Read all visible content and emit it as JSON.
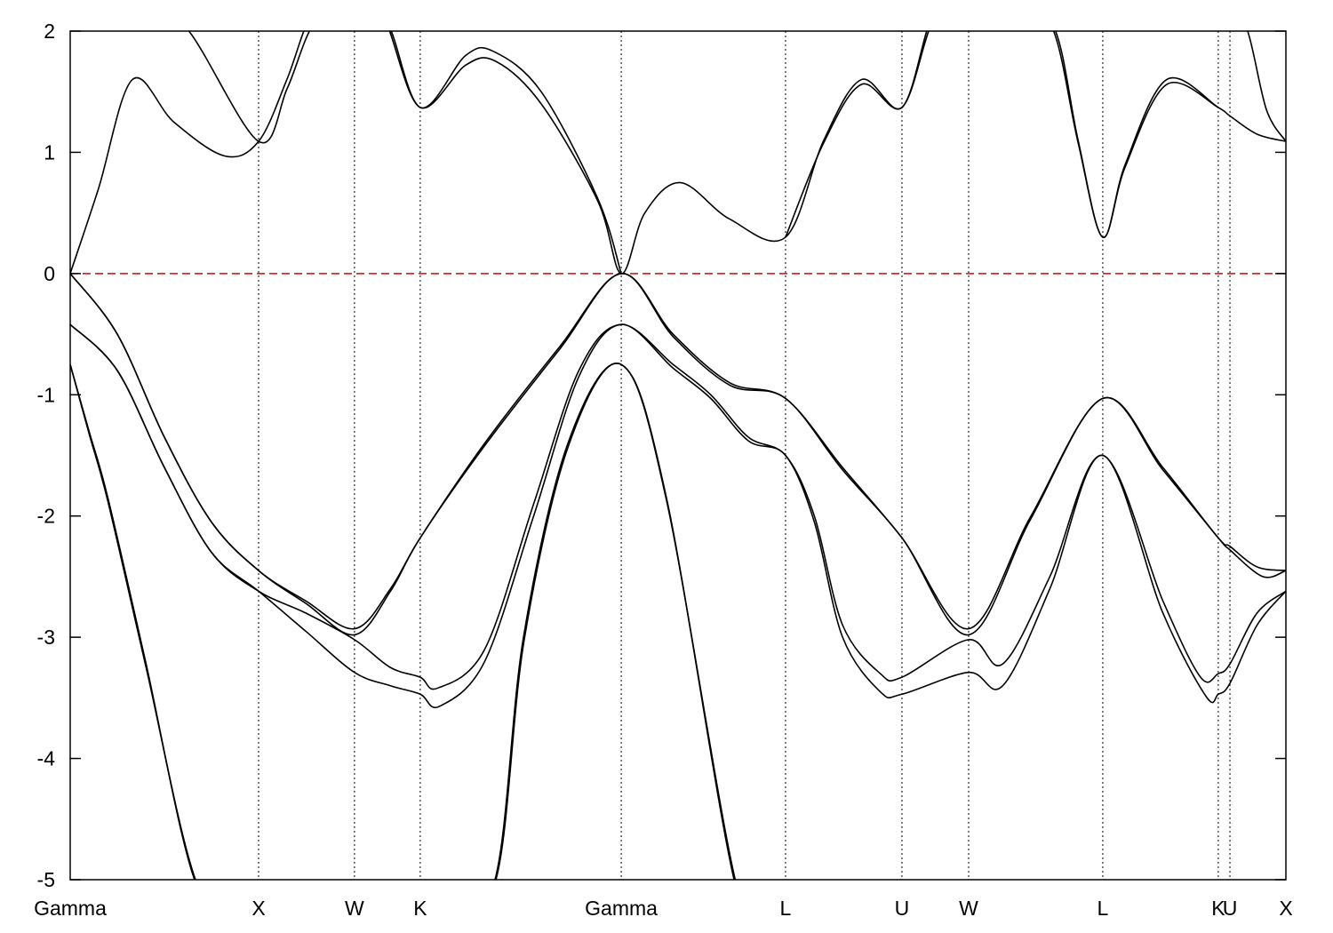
{
  "chart_data": {
    "type": "line",
    "title": "",
    "xlabel": "",
    "ylabel": "",
    "ylim": [
      -5,
      2
    ],
    "yticks": [
      "-5",
      "-4",
      "-3",
      "-2",
      "-1",
      "0",
      "1",
      "2"
    ],
    "xlim": [
      0,
      6.453
    ],
    "xticks": [
      {
        "label": "Gamma",
        "x": 0
      },
      {
        "label": "X",
        "x": 1.0
      },
      {
        "label": "W",
        "x": 1.509
      },
      {
        "label": "K",
        "x": 1.858
      },
      {
        "label": "Gamma",
        "x": 2.925
      },
      {
        "label": "L",
        "x": 3.797
      },
      {
        "label": "U",
        "x": 4.415
      },
      {
        "label": "W",
        "x": 4.769
      },
      {
        "label": "L",
        "x": 5.481
      },
      {
        "label": "K",
        "x": 6.094
      },
      {
        "label": "U",
        "x": 6.156
      },
      {
        "label": "X",
        "x": 6.453
      }
    ],
    "grid": "vertical dotted lines at high-symmetry points",
    "reference_line": {
      "y": 0,
      "color": "#e00000",
      "style": "dashed"
    },
    "line_color": "#000000",
    "series": [
      {
        "points": [
          [
            0,
            0
          ],
          [
            0.25,
            -0.5
          ],
          [
            0.5,
            -1.35
          ],
          [
            0.75,
            -2.05
          ],
          [
            1.0,
            -2.45
          ],
          [
            1.25,
            -2.7
          ],
          [
            1.509,
            -2.93
          ],
          [
            1.7,
            -2.6
          ],
          [
            1.858,
            -2.18
          ],
          [
            2.2,
            -1.4
          ],
          [
            2.6,
            -0.6
          ],
          [
            2.925,
            0
          ],
          [
            3.2,
            -0.5
          ],
          [
            3.5,
            -0.9
          ],
          [
            3.797,
            -1.03
          ],
          [
            4.1,
            -1.6
          ],
          [
            4.415,
            -2.18
          ],
          [
            4.769,
            -2.93
          ],
          [
            5.1,
            -2.0
          ],
          [
            5.481,
            -1.03
          ],
          [
            5.8,
            -1.6
          ],
          [
            6.094,
            -2.18
          ],
          [
            6.156,
            -2.25
          ],
          [
            6.3,
            -2.42
          ],
          [
            6.453,
            -2.45
          ]
        ]
      },
      {
        "points": [
          [
            0,
            0
          ],
          [
            0.25,
            -0.5
          ],
          [
            0.5,
            -1.35
          ],
          [
            0.75,
            -2.05
          ],
          [
            1.0,
            -2.45
          ],
          [
            1.25,
            -2.72
          ],
          [
            1.509,
            -2.98
          ],
          [
            1.7,
            -2.62
          ],
          [
            1.858,
            -2.18
          ],
          [
            2.2,
            -1.42
          ],
          [
            2.6,
            -0.62
          ],
          [
            2.925,
            0
          ],
          [
            3.2,
            -0.52
          ],
          [
            3.5,
            -0.92
          ],
          [
            3.797,
            -1.03
          ],
          [
            4.1,
            -1.62
          ],
          [
            4.415,
            -2.18
          ],
          [
            4.769,
            -2.98
          ],
          [
            5.1,
            -2.02
          ],
          [
            5.481,
            -1.03
          ],
          [
            5.8,
            -1.62
          ],
          [
            6.094,
            -2.18
          ],
          [
            6.156,
            -2.28
          ],
          [
            6.33,
            -2.5
          ],
          [
            6.453,
            -2.45
          ]
        ]
      },
      {
        "points": [
          [
            0,
            -0.42
          ],
          [
            0.25,
            -0.8
          ],
          [
            0.5,
            -1.6
          ],
          [
            0.75,
            -2.3
          ],
          [
            1.0,
            -2.62
          ],
          [
            1.25,
            -2.8
          ],
          [
            1.509,
            -3.02
          ],
          [
            1.7,
            -3.25
          ],
          [
            1.858,
            -3.33
          ],
          [
            1.95,
            -3.42
          ],
          [
            2.2,
            -3.1
          ],
          [
            2.46,
            -1.9
          ],
          [
            2.7,
            -0.8
          ],
          [
            2.925,
            -0.42
          ],
          [
            3.2,
            -0.75
          ],
          [
            3.4,
            -1.0
          ],
          [
            3.6,
            -1.35
          ],
          [
            3.797,
            -1.5
          ],
          [
            3.95,
            -2.0
          ],
          [
            4.1,
            -2.9
          ],
          [
            4.3,
            -3.3
          ],
          [
            4.415,
            -3.33
          ],
          [
            4.769,
            -3.02
          ],
          [
            4.95,
            -3.22
          ],
          [
            5.2,
            -2.5
          ],
          [
            5.481,
            -1.5
          ],
          [
            5.8,
            -2.7
          ],
          [
            6.0,
            -3.33
          ],
          [
            6.094,
            -3.3
          ],
          [
            6.156,
            -3.22
          ],
          [
            6.3,
            -2.8
          ],
          [
            6.453,
            -2.62
          ]
        ]
      },
      {
        "points": [
          [
            0,
            -0.42
          ],
          [
            0.25,
            -0.8
          ],
          [
            0.5,
            -1.6
          ],
          [
            0.75,
            -2.3
          ],
          [
            1.0,
            -2.62
          ],
          [
            1.25,
            -2.95
          ],
          [
            1.509,
            -3.29
          ],
          [
            1.7,
            -3.4
          ],
          [
            1.858,
            -3.47
          ],
          [
            1.96,
            -3.57
          ],
          [
            2.2,
            -3.2
          ],
          [
            2.46,
            -2.0
          ],
          [
            2.7,
            -0.85
          ],
          [
            2.925,
            -0.42
          ],
          [
            3.2,
            -0.78
          ],
          [
            3.4,
            -1.03
          ],
          [
            3.6,
            -1.38
          ],
          [
            3.797,
            -1.5
          ],
          [
            3.95,
            -2.05
          ],
          [
            4.1,
            -3.0
          ],
          [
            4.3,
            -3.45
          ],
          [
            4.415,
            -3.47
          ],
          [
            4.769,
            -3.29
          ],
          [
            4.95,
            -3.4
          ],
          [
            5.2,
            -2.6
          ],
          [
            5.481,
            -1.5
          ],
          [
            5.8,
            -2.8
          ],
          [
            6.03,
            -3.49
          ],
          [
            6.094,
            -3.47
          ],
          [
            6.156,
            -3.38
          ],
          [
            6.3,
            -2.9
          ],
          [
            6.453,
            -2.62
          ]
        ]
      },
      {
        "points": [
          [
            0,
            -0.75
          ],
          [
            0.1,
            -1.3
          ],
          [
            0.2,
            -1.85
          ],
          [
            0.4,
            -3.2
          ],
          [
            0.66,
            -5.0
          ],
          [
            0.9,
            -6.5
          ],
          null,
          [
            2.0,
            -6.8
          ],
          [
            2.255,
            -5.0
          ],
          [
            2.406,
            -3.0
          ],
          [
            2.642,
            -1.4
          ],
          [
            2.925,
            -0.75
          ],
          [
            3.165,
            -1.85
          ],
          [
            3.524,
            -5.0
          ],
          [
            3.7,
            -6.5
          ]
        ]
      },
      {
        "points": [
          [
            0,
            -0.75
          ],
          [
            0.1,
            -1.32
          ],
          [
            0.2,
            -1.88
          ],
          [
            0.4,
            -3.23
          ],
          [
            0.665,
            -5.0
          ],
          [
            0.9,
            -6.5
          ],
          null,
          [
            2.0,
            -6.8
          ],
          [
            2.26,
            -5.0
          ],
          [
            2.41,
            -3.02
          ],
          [
            2.645,
            -1.42
          ],
          [
            2.925,
            -0.75
          ],
          [
            3.165,
            -1.87
          ],
          [
            3.53,
            -5.0
          ],
          [
            3.7,
            -6.5
          ]
        ]
      },
      {
        "points": [
          [
            0,
            0
          ],
          [
            0.15,
            0.7
          ],
          [
            0.33,
            1.6
          ],
          [
            0.55,
            1.25
          ],
          [
            0.82,
            0.97
          ],
          [
            1.0,
            1.09
          ],
          [
            1.15,
            1.6
          ],
          [
            1.27,
            2.1
          ],
          [
            1.4,
            2.7
          ],
          null,
          [
            1.55,
            2.9
          ],
          [
            1.69,
            2.05
          ],
          [
            1.858,
            1.37
          ],
          [
            2.1,
            1.72
          ],
          [
            2.26,
            1.75
          ],
          [
            2.5,
            1.4
          ],
          [
            2.8,
            0.6
          ],
          [
            2.925,
            0
          ],
          [
            3.05,
            0.5
          ],
          [
            3.24,
            0.75
          ],
          [
            3.5,
            0.45
          ],
          [
            3.797,
            0.3
          ],
          [
            4.0,
            1.1
          ],
          [
            4.2,
            1.6
          ],
          [
            4.415,
            1.37
          ],
          [
            4.57,
            2.1
          ],
          [
            4.7,
            2.8
          ],
          null,
          [
            5.05,
            2.8
          ],
          [
            5.23,
            2.0
          ],
          [
            5.35,
            1.1
          ],
          [
            5.481,
            0.3
          ],
          [
            5.6,
            0.9
          ],
          [
            5.82,
            1.6
          ],
          [
            6.094,
            1.37
          ],
          [
            6.156,
            1.3
          ],
          [
            6.3,
            1.15
          ],
          [
            6.453,
            1.09
          ]
        ]
      },
      {
        "points": [
          [
            0.4,
            3.0
          ],
          [
            0.63,
            2.0
          ],
          [
            1.0,
            1.09
          ],
          [
            1.15,
            1.52
          ],
          [
            1.27,
            2.0
          ],
          [
            1.4,
            2.6
          ],
          null,
          [
            1.55,
            2.9
          ],
          [
            1.67,
            2.1
          ],
          [
            1.858,
            1.37
          ],
          [
            2.1,
            1.8
          ],
          [
            2.25,
            1.83
          ],
          [
            2.5,
            1.5
          ],
          [
            2.8,
            0.62
          ],
          [
            2.925,
            0
          ],
          null,
          [
            3.797,
            0.3
          ],
          [
            4.0,
            1.08
          ],
          [
            4.2,
            1.56
          ],
          [
            4.415,
            1.37
          ],
          [
            4.57,
            2.05
          ],
          [
            4.7,
            2.7
          ],
          null,
          [
            5.05,
            2.8
          ],
          [
            5.22,
            2.0
          ],
          [
            5.35,
            1.08
          ],
          [
            5.481,
            0.3
          ],
          [
            5.6,
            0.88
          ],
          [
            5.82,
            1.56
          ],
          [
            6.094,
            1.37
          ],
          null,
          [
            6.15,
            2.6
          ],
          [
            6.25,
            2.0
          ],
          [
            6.35,
            1.35
          ],
          [
            6.453,
            1.09
          ]
        ]
      }
    ]
  }
}
